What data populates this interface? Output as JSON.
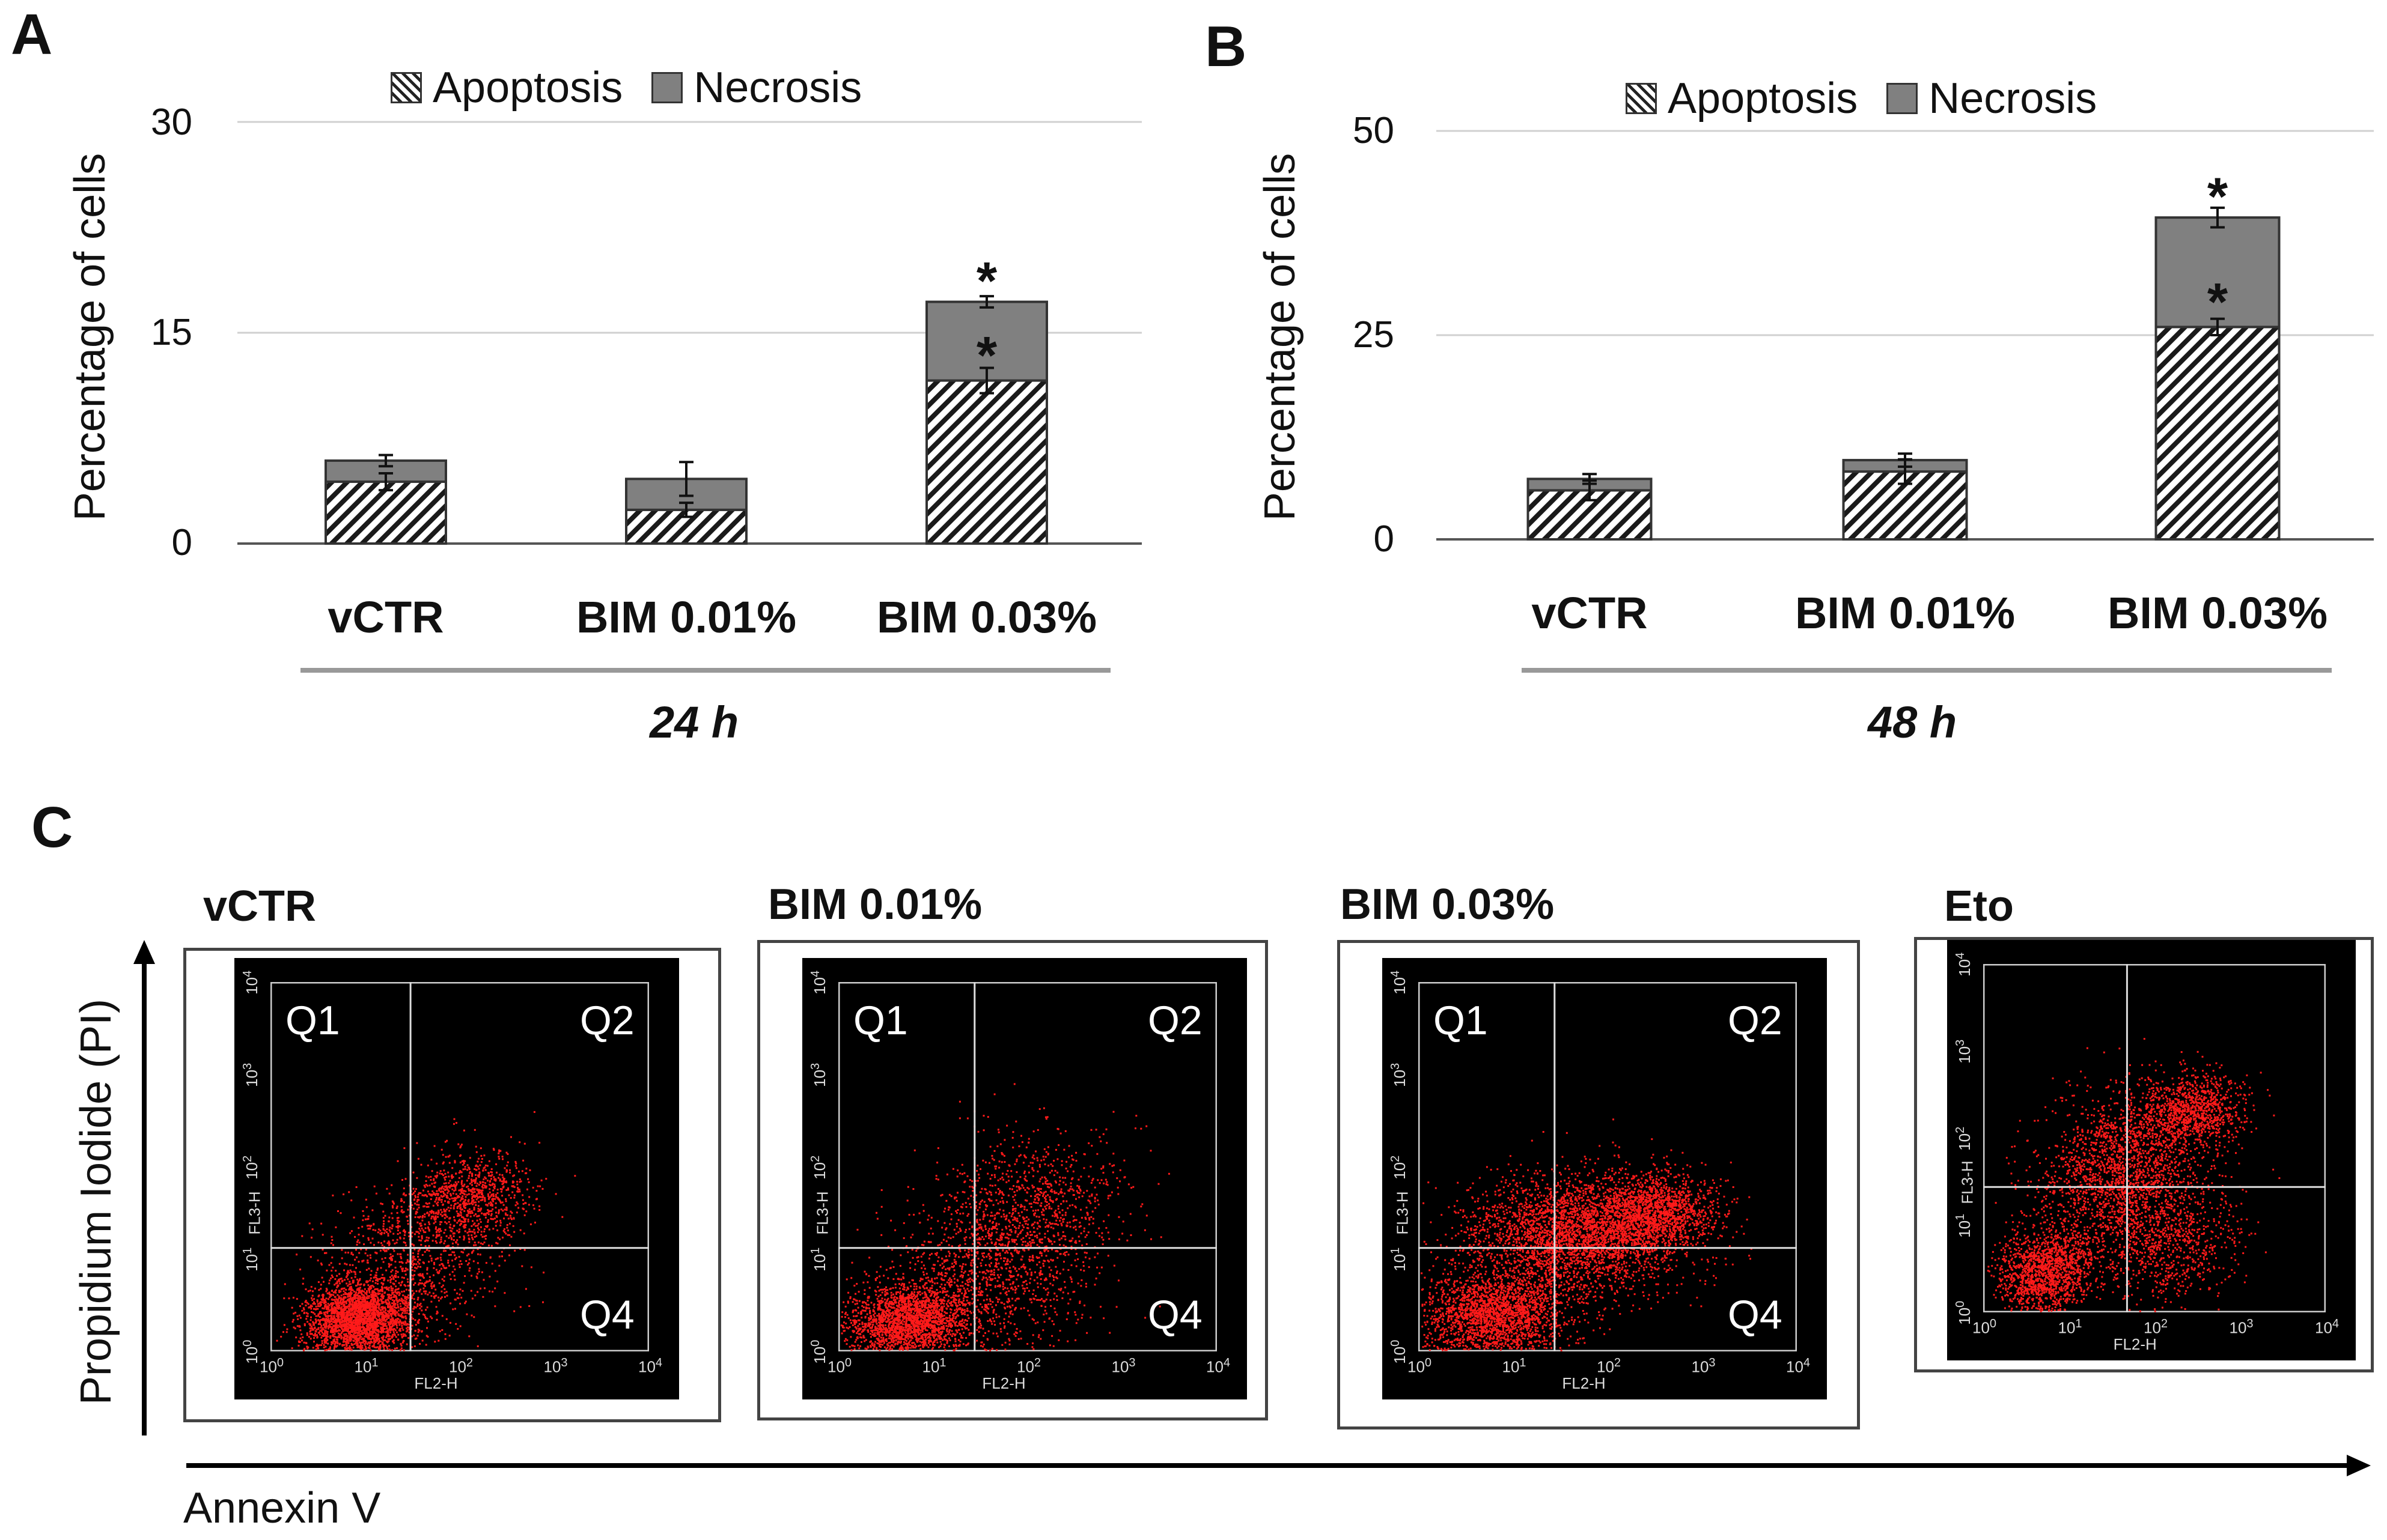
{
  "chart_data": [
    {
      "id": "A",
      "type": "bar",
      "stacked": true,
      "panel_label": "A",
      "time_label": "24 h",
      "ylabel": "Percentage of cells",
      "ylim": [
        0,
        30
      ],
      "yticks": [
        "0",
        "15",
        "30"
      ],
      "categories": [
        "vCTR",
        "BIM 0.01%",
        "BIM 0.03%"
      ],
      "series": [
        {
          "name": "Apoptosis",
          "values": [
            4.4,
            2.4,
            11.6
          ],
          "errors": [
            0.6,
            0.5,
            0.9
          ]
        },
        {
          "name": "Necrosis",
          "values": [
            1.5,
            2.2,
            5.6
          ],
          "errors": [
            0.4,
            1.2,
            0.4
          ]
        }
      ],
      "annotations": [
        "*",
        "*"
      ],
      "legend": [
        "Apoptosis",
        "Necrosis"
      ]
    },
    {
      "id": "B",
      "type": "bar",
      "stacked": true,
      "panel_label": "B",
      "time_label": "48 h",
      "ylabel": "Percentage of cells",
      "ylim": [
        0,
        50
      ],
      "yticks": [
        "0",
        "25",
        "50"
      ],
      "categories": [
        "vCTR",
        "BIM 0.01%",
        "BIM 0.03%"
      ],
      "series": [
        {
          "name": "Apoptosis",
          "values": [
            6.0,
            8.3,
            26.0
          ],
          "errors": [
            1.2,
            1.5,
            1.0
          ]
        },
        {
          "name": "Necrosis",
          "values": [
            1.4,
            1.4,
            13.4
          ],
          "errors": [
            0.6,
            0.8,
            1.2
          ]
        }
      ],
      "annotations": [
        "*",
        "*"
      ],
      "legend": [
        "Apoptosis",
        "Necrosis"
      ]
    },
    {
      "id": "C",
      "type": "scatter",
      "panel_label": "C",
      "xlabel": "Annexin V",
      "ylabel": "Propidium Iodide (PI)",
      "xaxis_name": "FL2-H",
      "yaxis_name": "FL3-H",
      "axis_ticks": [
        "10",
        "10",
        "10",
        "10",
        "10"
      ],
      "axis_exponents": [
        "0",
        "1",
        "2",
        "3",
        "4"
      ],
      "quadrants": [
        "Q1",
        "Q2",
        "Q4"
      ],
      "panels": [
        {
          "title": "vCTR"
        },
        {
          "title": "BIM 0.01%"
        },
        {
          "title": "BIM 0.03%"
        },
        {
          "title": "Eto"
        }
      ]
    }
  ]
}
